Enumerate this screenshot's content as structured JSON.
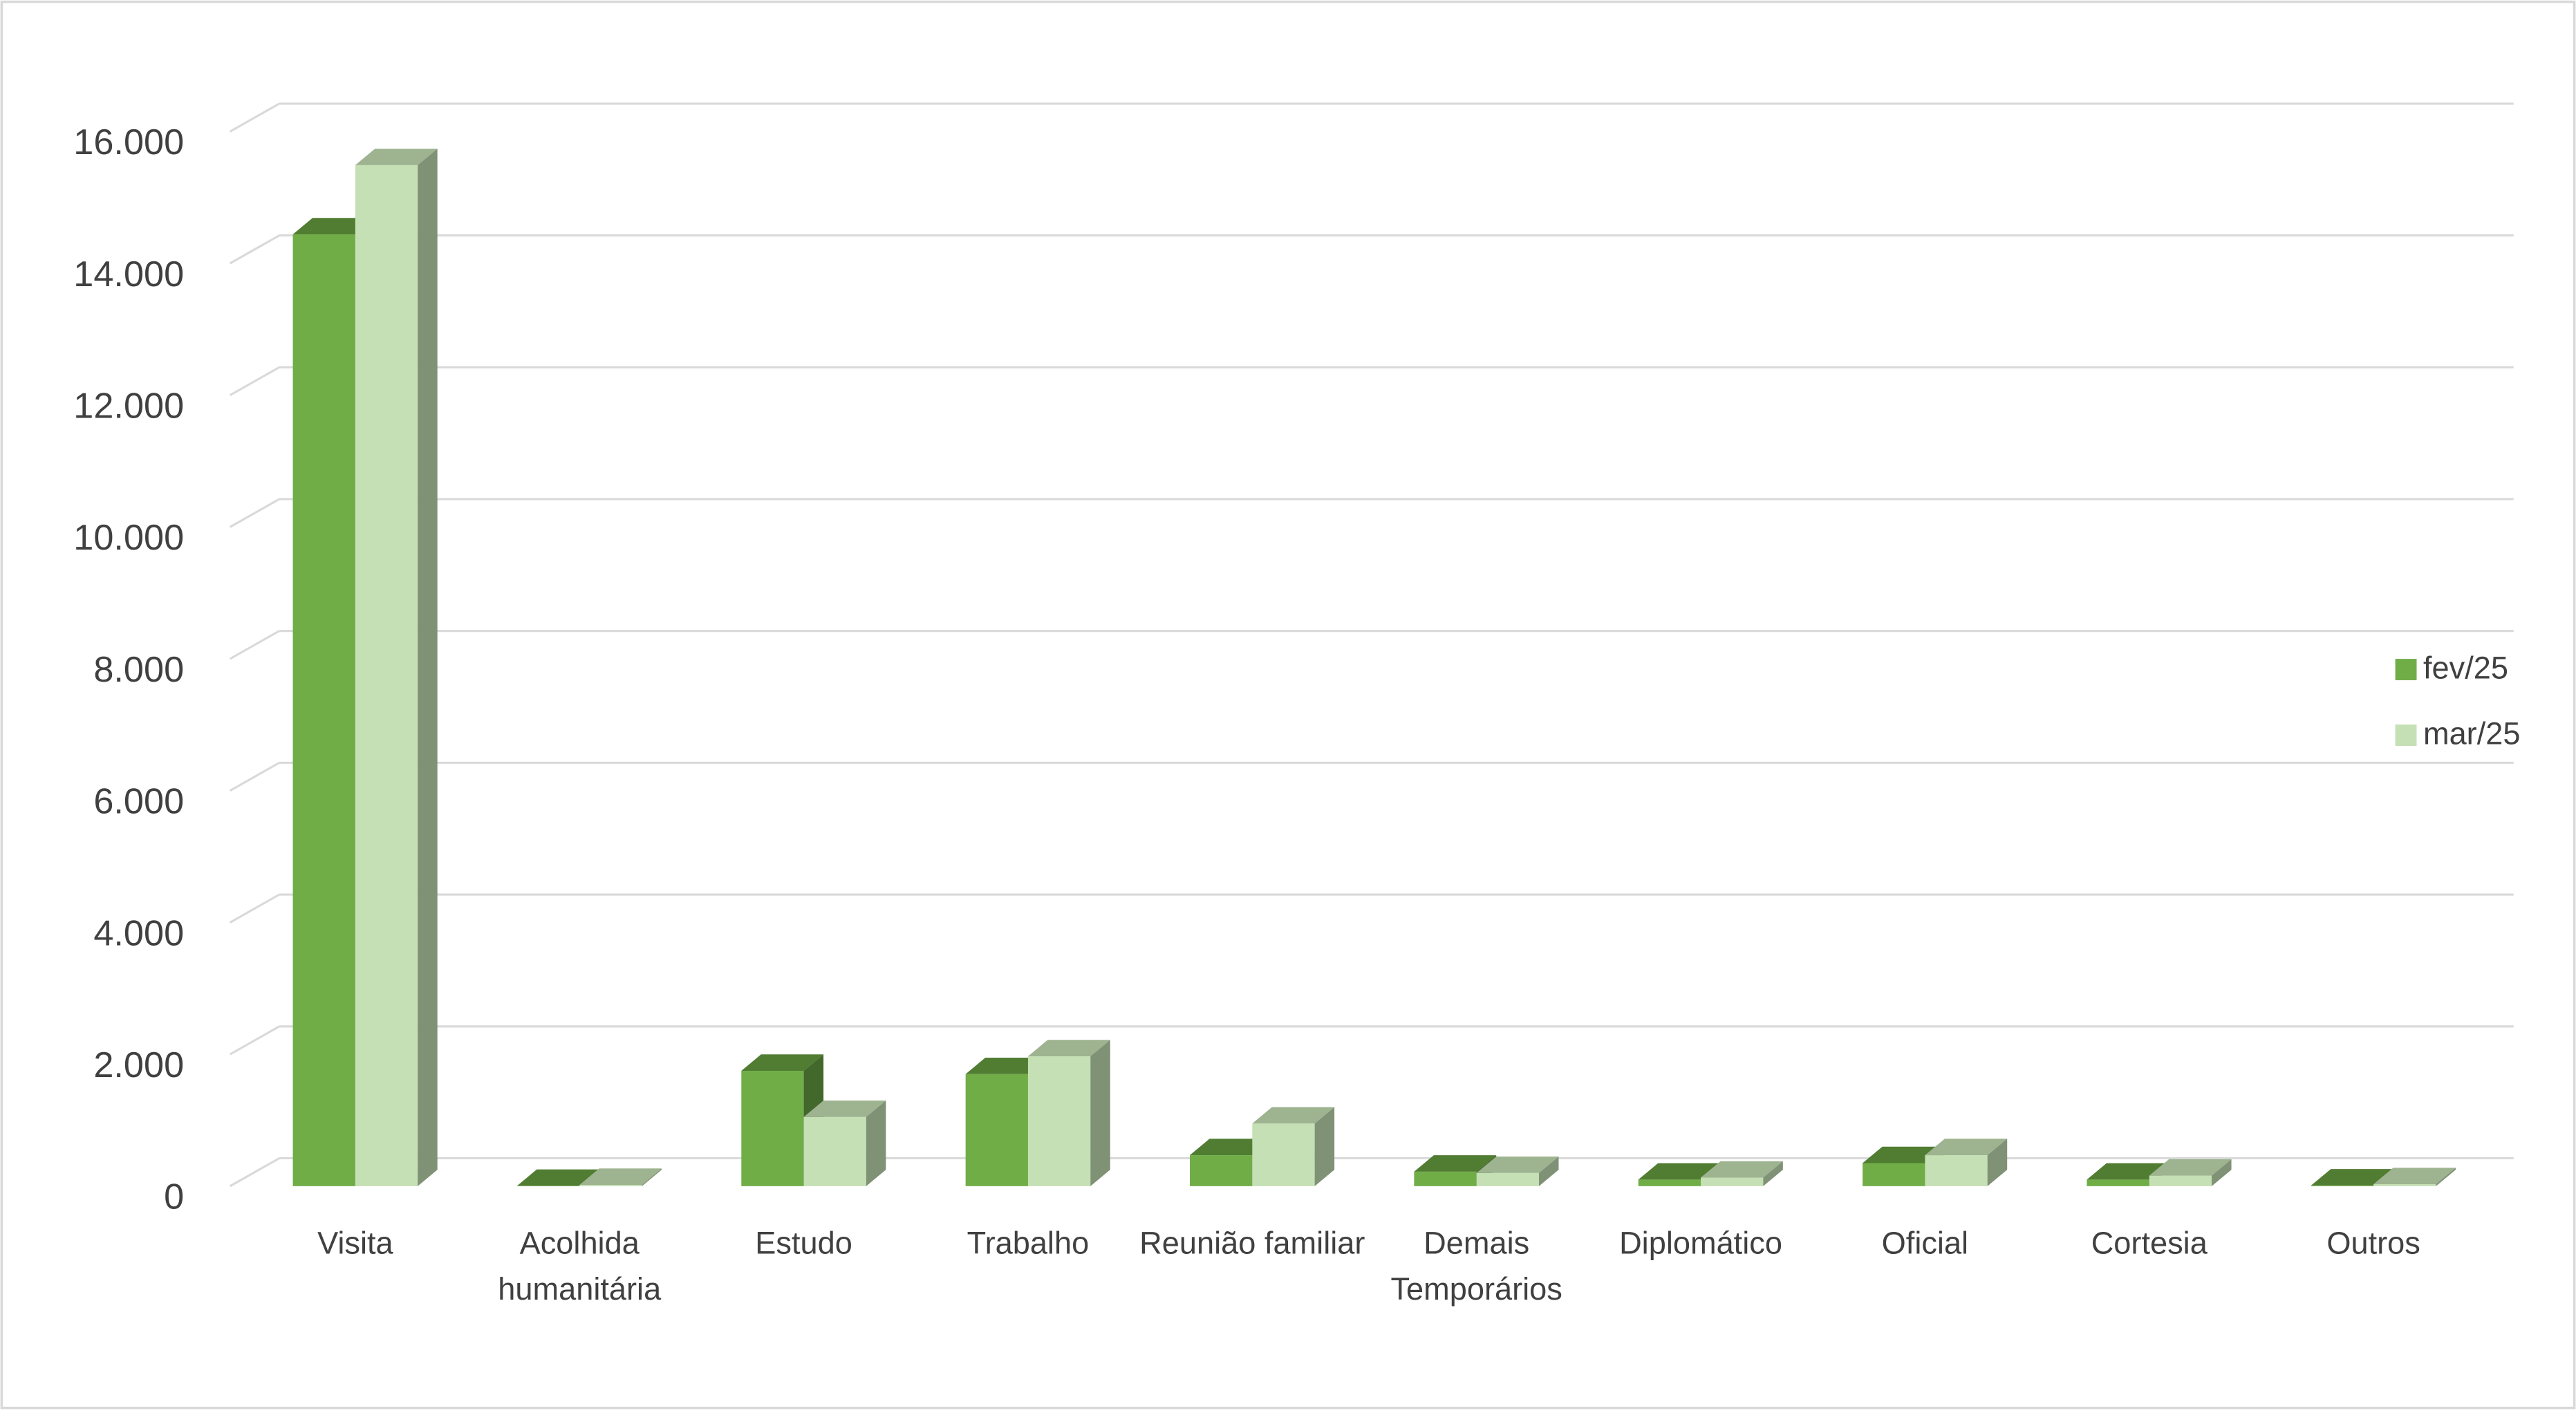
{
  "chart_data": {
    "type": "bar3d",
    "categories": [
      "Visita",
      "Acolhida humanitária",
      "Estudo",
      "Trabalho",
      "Reunião familiar",
      "Demais Temporários",
      "Diplomático",
      "Oficial",
      "Cortesia",
      "Outros"
    ],
    "series": [
      {
        "name": "fev/25",
        "color": "#70ad47",
        "values": [
          14440,
          5,
          1750,
          1700,
          470,
          220,
          100,
          350,
          100,
          10
        ]
      },
      {
        "name": "mar/25",
        "color": "#c5e0b4",
        "values": [
          15490,
          20,
          1050,
          1970,
          950,
          200,
          130,
          470,
          160,
          30
        ]
      }
    ],
    "ylim": [
      0,
      16000
    ],
    "yticks": [
      0,
      {
        "value": 2000,
        "label": "2.000"
      },
      {
        "value": 4000,
        "label": "4.000"
      },
      {
        "value": 6000,
        "label": "6.000"
      },
      {
        "value": 8000,
        "label": "8.000"
      },
      {
        "value": 10000,
        "label": "10.000"
      },
      {
        "value": 12000,
        "label": "12.000"
      },
      {
        "value": 14000,
        "label": "14.000"
      },
      {
        "value": 16000,
        "label": "16.000"
      }
    ],
    "grid": true,
    "legend": "right"
  }
}
